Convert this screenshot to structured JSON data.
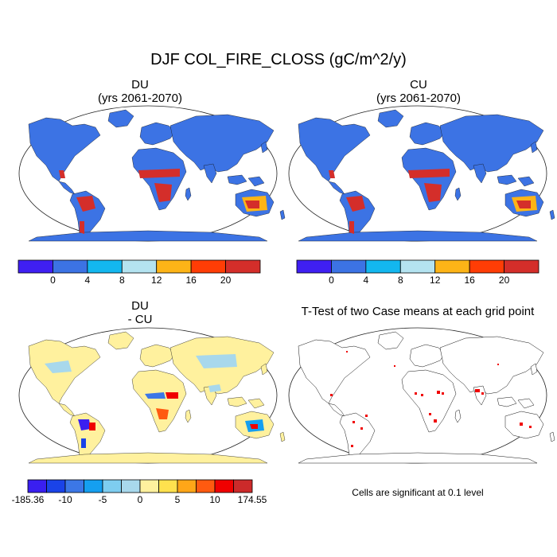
{
  "figure": {
    "title": "DJF COL_FIRE_CLOSS (gC/m^2/y)"
  },
  "panels": [
    {
      "id": "du",
      "title_line1": "DU",
      "title_line2": "(yrs 2061-2070)",
      "colorbar": {
        "colors": [
          "#3f1ff2",
          "#3c73e4",
          "#13b7ef",
          "#b4e3f0",
          "#fdb417",
          "#ff3d05",
          "#d42e2a"
        ],
        "labels": [
          "0",
          "4",
          "8",
          "12",
          "16",
          "20"
        ]
      }
    },
    {
      "id": "cu",
      "title_line1": "CU",
      "title_line2": "(yrs 2061-2070)",
      "colorbar": {
        "colors": [
          "#3f1ff2",
          "#3c73e4",
          "#13b7ef",
          "#b4e3f0",
          "#fdb417",
          "#ff3d05",
          "#d42e2a"
        ],
        "labels": [
          "0",
          "4",
          "8",
          "12",
          "16",
          "20"
        ]
      }
    },
    {
      "id": "diff",
      "title_line1": "DU",
      "title_line2": "- CU",
      "colorbar": {
        "colors": [
          "#3a1ff0",
          "#1a43e8",
          "#3c77e6",
          "#159ff0",
          "#7ecdf0",
          "#a8d8ec",
          "#fff19e",
          "#ffe14e",
          "#ffa618",
          "#ff5a10",
          "#f00000",
          "#cc2a2a"
        ],
        "labels": [
          "-185.36",
          "-10",
          "-5",
          "0",
          "5",
          "10",
          "174.55"
        ]
      }
    },
    {
      "id": "ttest",
      "title": "T-Test of two Case means at each grid point",
      "note": "Cells are significant at 0.1 level"
    }
  ],
  "colors": {
    "ocean": "#ffffff",
    "land_low": "#3c73e4",
    "high_fire": "#d42e2a",
    "mid_fire": "#fdb417",
    "diff_land": "#fff19e",
    "significant": "#f00000"
  }
}
